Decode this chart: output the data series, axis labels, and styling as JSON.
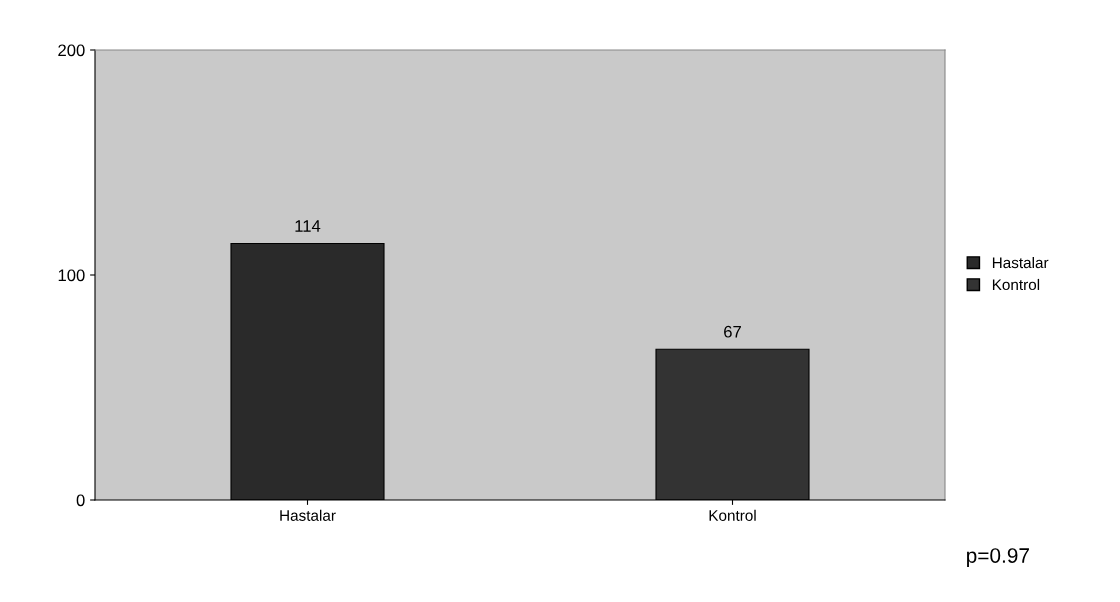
{
  "chart_data": {
    "type": "bar",
    "categories": [
      "Hastalar",
      "Kontrol"
    ],
    "series": [
      {
        "name": "Hastalar",
        "color": "#2a2a2a",
        "values": [
          114,
          null
        ]
      },
      {
        "name": "Kontrol",
        "color": "#333333",
        "values": [
          null,
          67
        ]
      }
    ],
    "ylim": [
      0,
      200
    ],
    "yticks": [
      0,
      100,
      200
    ],
    "grid": false,
    "legend": "right",
    "data_labels": true,
    "annotations": [
      "p=0.97"
    ]
  }
}
